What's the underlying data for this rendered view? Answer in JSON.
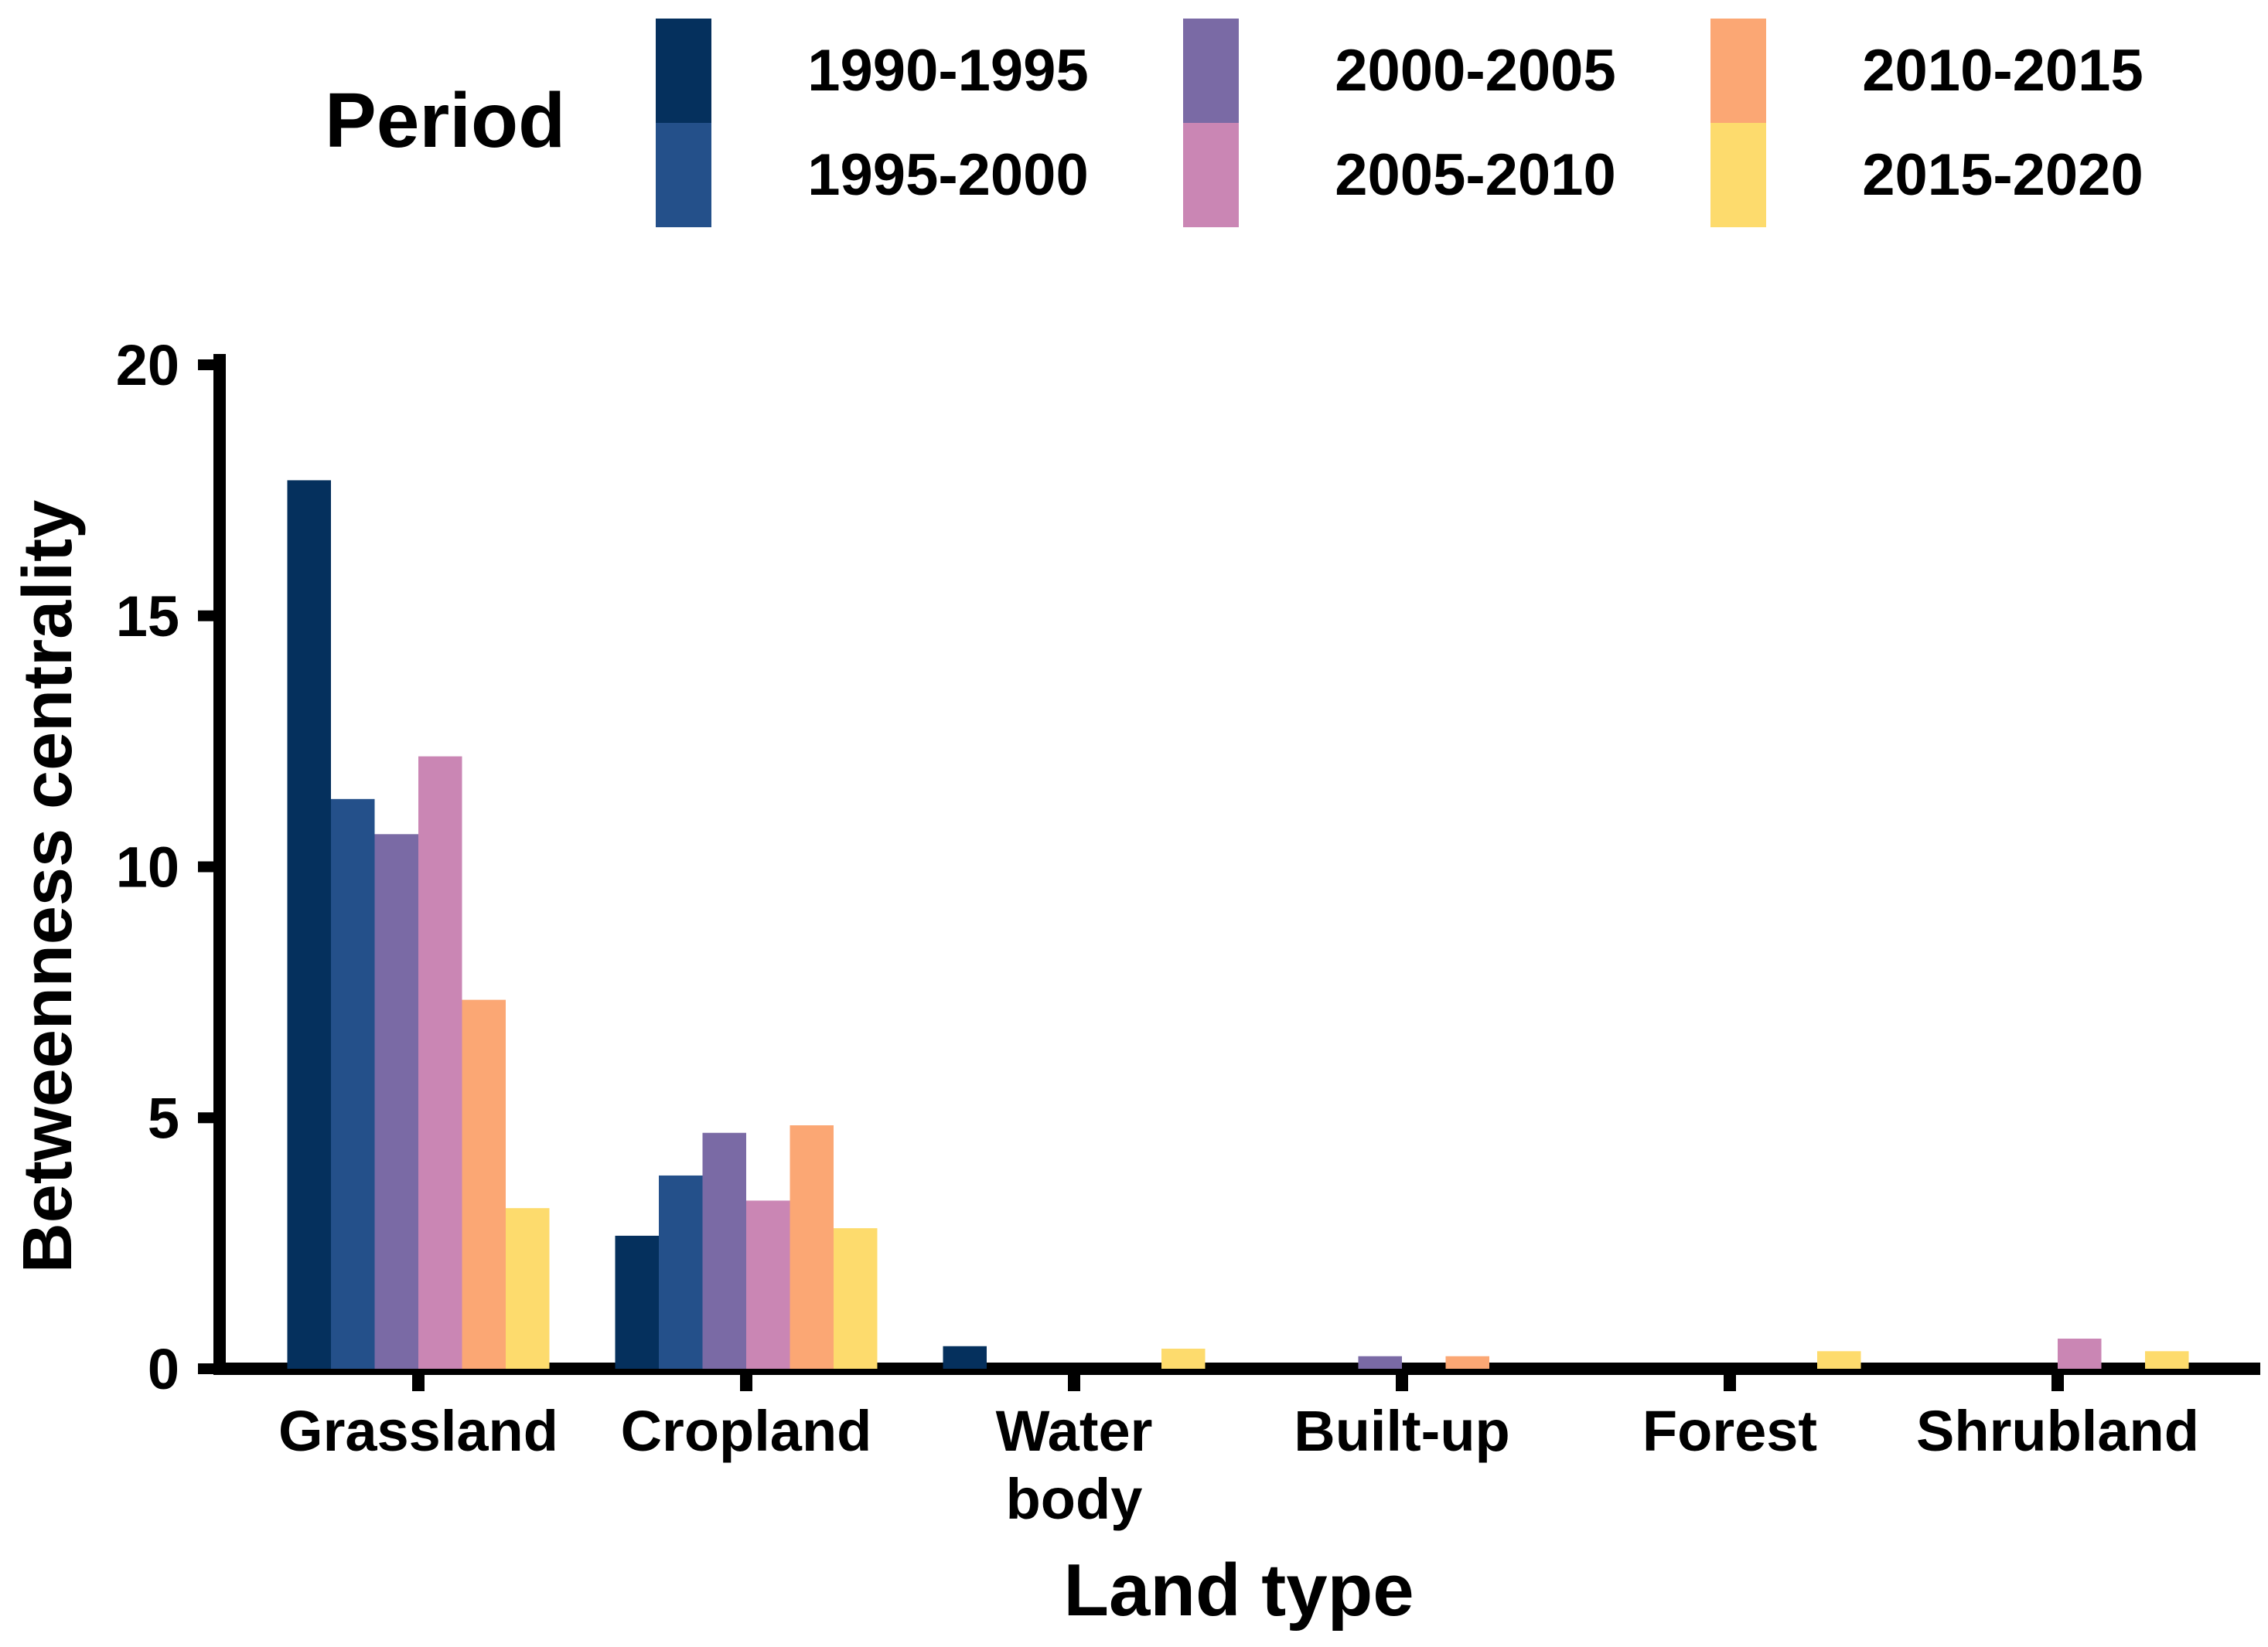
{
  "chart_data": {
    "type": "bar",
    "title": "",
    "xlabel": "Land type",
    "ylabel": "Betweenness centrality",
    "ylim": [
      0,
      20
    ],
    "yticks": [
      0,
      5,
      10,
      15,
      20
    ],
    "grid": false,
    "legend": {
      "title": "Period",
      "placement": "top"
    },
    "categories": [
      [
        "Grassland"
      ],
      [
        "Cropland"
      ],
      [
        "Water",
        "body"
      ],
      [
        "Built-up"
      ],
      [
        "Forest"
      ],
      [
        "Shrubland"
      ]
    ],
    "series": [
      {
        "name": "1990-1995",
        "color": "#05305d",
        "values": [
          17.7,
          2.65,
          0.45,
          0,
          0,
          0
        ]
      },
      {
        "name": "1995-2000",
        "color": "#24508a",
        "values": [
          11.35,
          3.85,
          0,
          0,
          0,
          0
        ]
      },
      {
        "name": "2000-2005",
        "color": "#7a6aa5",
        "values": [
          10.65,
          4.7,
          0,
          0.25,
          0,
          0
        ]
      },
      {
        "name": "2005-2010",
        "color": "#ca86b4",
        "values": [
          12.2,
          3.35,
          0,
          0,
          0,
          0.6
        ]
      },
      {
        "name": "2010-2015",
        "color": "#fba774",
        "values": [
          7.35,
          4.85,
          0,
          0.25,
          0,
          0
        ]
      },
      {
        "name": "2015-2020",
        "color": "#fddb6d",
        "values": [
          3.2,
          2.8,
          0.4,
          0,
          0.35,
          0.35
        ]
      }
    ]
  }
}
